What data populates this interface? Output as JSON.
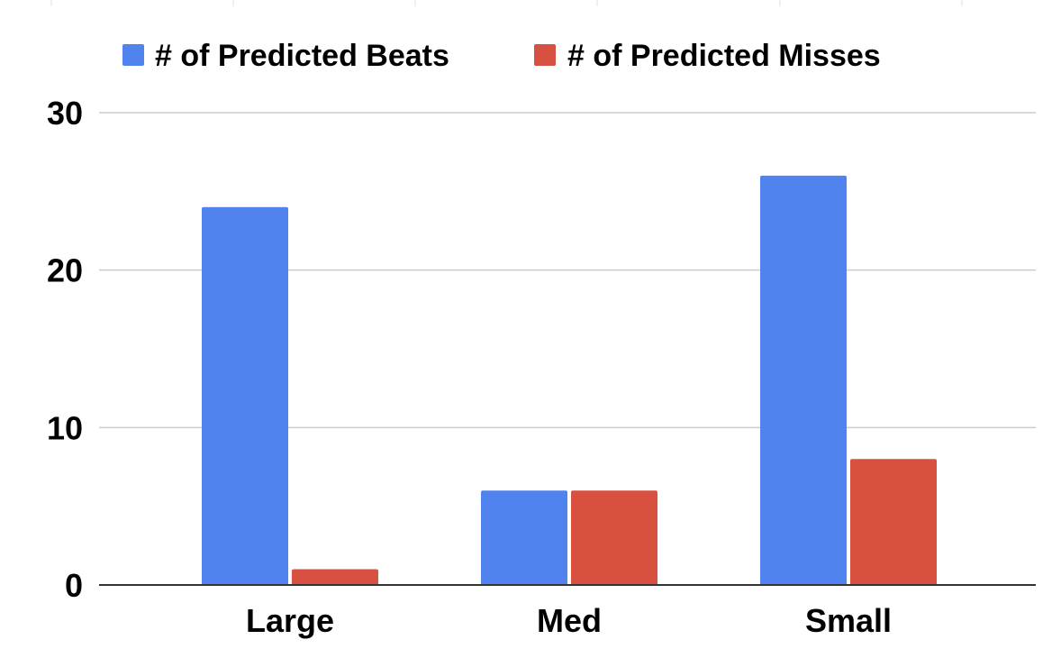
{
  "chart_data": {
    "type": "bar",
    "categories": [
      "Large",
      "Med",
      "Small"
    ],
    "series": [
      {
        "name": "# of Predicted Beats",
        "values": [
          24,
          6,
          26
        ],
        "color": "#5083EE"
      },
      {
        "name": "# of Predicted Misses",
        "values": [
          1,
          6,
          8
        ],
        "color": "#D85040"
      }
    ],
    "ylim": [
      0,
      30
    ],
    "yticks": [
      0,
      10,
      20,
      30
    ],
    "ytick_labels": [
      "0",
      "10",
      "20",
      "30"
    ],
    "grid": true,
    "legend_position": "top"
  }
}
